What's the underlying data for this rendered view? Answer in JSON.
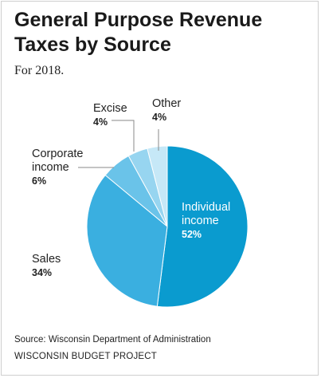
{
  "title": "General Purpose Revenue Taxes by Source",
  "subtitle": "For 2018.",
  "source": "Source: Wisconsin Department of Administration",
  "organization": "WISCONSIN BUDGET PROJECT",
  "chart_data": {
    "type": "pie",
    "slices": [
      {
        "label": "Individual income",
        "label_lines": [
          "Individual",
          "income"
        ],
        "value": 52,
        "value_label": "52%",
        "color": "#0a9bcf",
        "text_color": "#ffffff"
      },
      {
        "label": "Sales",
        "label_lines": [
          "Sales"
        ],
        "value": 34,
        "value_label": "34%",
        "color": "#3aafe0",
        "text_color": "#222222"
      },
      {
        "label": "Corporate income",
        "label_lines": [
          "Corporate",
          "income"
        ],
        "value": 6,
        "value_label": "6%",
        "color": "#6ac3e9",
        "text_color": "#222222"
      },
      {
        "label": "Excise",
        "label_lines": [
          "Excise"
        ],
        "value": 4,
        "value_label": "4%",
        "color": "#97d5f0",
        "text_color": "#222222"
      },
      {
        "label": "Other",
        "label_lines": [
          "Other"
        ],
        "value": 4,
        "value_label": "4%",
        "color": "#c6e8f7",
        "text_color": "#222222"
      }
    ]
  }
}
